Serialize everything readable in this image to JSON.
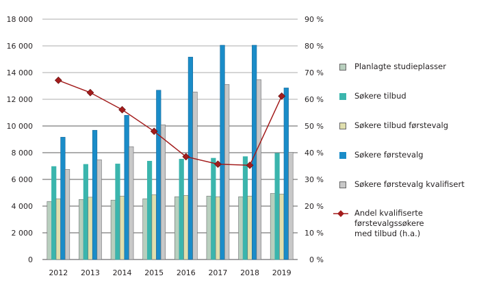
{
  "chart_data": {
    "type": "bar+line",
    "title": "",
    "categories": [
      "2012",
      "2013",
      "2014",
      "2015",
      "2016",
      "2017",
      "2018",
      "2019"
    ],
    "series": [
      {
        "name": "Planlagte studieplasser",
        "type": "bar",
        "axis": "left",
        "color": "#b8cfbe",
        "values": [
          4350,
          4500,
          4450,
          4550,
          4700,
          4750,
          4700,
          4950
        ]
      },
      {
        "name": "Søkere tilbud",
        "type": "bar",
        "axis": "left",
        "color": "#3bb5ad",
        "values": [
          6970,
          7130,
          7160,
          7370,
          7520,
          7590,
          7710,
          7960
        ]
      },
      {
        "name": "Søkere tilbud førstevalg",
        "type": "bar",
        "axis": "left",
        "color": "#e0dfae",
        "values": [
          4550,
          4670,
          4750,
          4850,
          4800,
          4700,
          4750,
          4900
        ]
      },
      {
        "name": "Søkere førstevalg",
        "type": "bar",
        "axis": "left",
        "color": "#1a8cc8",
        "values": [
          9160,
          9680,
          10800,
          12680,
          15160,
          16050,
          16050,
          12850
        ]
      },
      {
        "name": "Søkere førstevalg kvalifisert",
        "type": "bar",
        "axis": "left",
        "color": "#c8c8c8",
        "values": [
          6750,
          7470,
          8450,
          10090,
          12550,
          13110,
          13470,
          8030
        ]
      },
      {
        "name": "Andel kvalifiserte førstevalgssøkere med tilbud (h.a.)",
        "type": "line",
        "axis": "right",
        "color": "#a31c1c",
        "values": [
          67.1,
          62.5,
          56.1,
          48.0,
          38.5,
          35.7,
          35.3,
          61.2
        ]
      }
    ],
    "y_left": {
      "min": 0,
      "max": 18000,
      "step": 2000,
      "tick_labels": [
        "0",
        "2 000",
        "4 000",
        "6 000",
        "8 000",
        "10 000",
        "12 000",
        "14 000",
        "16 000",
        "18 000"
      ]
    },
    "y_right": {
      "min": 0,
      "max": 90,
      "step": 10,
      "tick_labels": [
        "0 %",
        "10 %",
        "20 %",
        "30 %",
        "40 %",
        "50 %",
        "60 %",
        "70 %",
        "80 %",
        "90 %"
      ]
    },
    "xlabel": "",
    "ylabel": "",
    "grid": true,
    "legend_position": "right"
  },
  "legend": {
    "items": [
      {
        "label": "Planlagte studieplasser",
        "kind": "box",
        "color": "#b8cfbe"
      },
      {
        "label": "Søkere tilbud",
        "kind": "box",
        "color": "#3bb5ad"
      },
      {
        "label": "Søkere tilbud førstevalg",
        "kind": "box",
        "color": "#e0dfae"
      },
      {
        "label": "Søkere førstevalg",
        "kind": "box",
        "color": "#1a8cc8"
      },
      {
        "label": "Søkere førstevalg kvalifisert",
        "kind": "box",
        "color": "#c8c8c8"
      },
      {
        "label": "Andel kvalifiserte førstevalgssøkere",
        "label2": "med tilbud (h.a.)",
        "kind": "line",
        "color": "#a31c1c"
      }
    ]
  }
}
